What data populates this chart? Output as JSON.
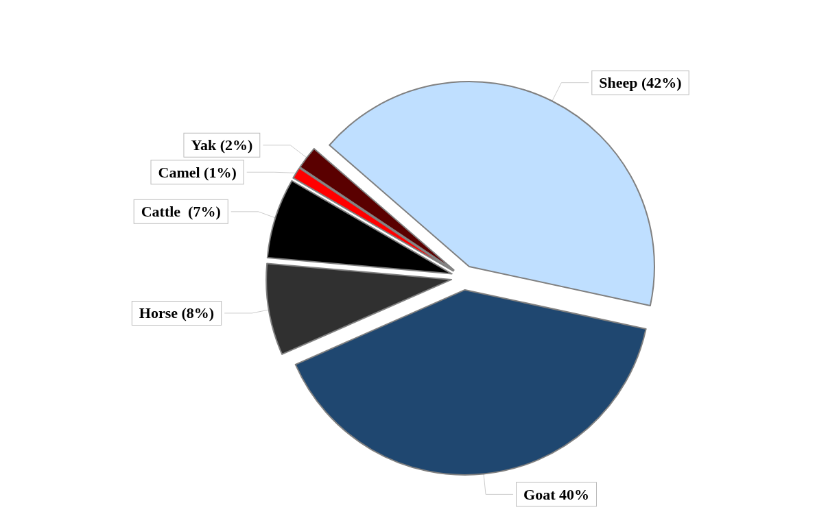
{
  "chart_data": {
    "type": "pie",
    "categories": [
      "Sheep (42%)",
      "Goat 40%",
      "Horse (8%)",
      "Cattle  (7%)",
      "Camel (1%)",
      "Yak (2%)"
    ],
    "values": [
      42,
      40,
      8,
      7,
      1,
      2
    ],
    "colors": [
      "#bfdfff",
      "#1f4770",
      "#303030",
      "#000000",
      "#ff0000",
      "#5a0000"
    ],
    "legend": false
  }
}
